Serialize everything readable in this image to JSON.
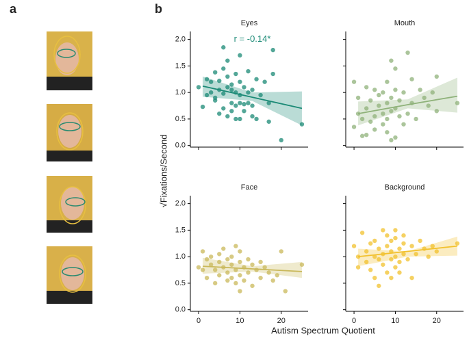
{
  "panel_labels": [
    "a",
    "b"
  ],
  "xlabel": "Autism Spectrum Quotient",
  "ylabel": "√Fixations/Second",
  "chart_data": [
    {
      "type": "scatter",
      "title": "Eyes",
      "annotation": "r = -0.14*",
      "color": "#1b8a76",
      "x": [
        0,
        1,
        2,
        2,
        3,
        3,
        4,
        4,
        4,
        5,
        5,
        5,
        6,
        6,
        6,
        6,
        7,
        7,
        7,
        7,
        8,
        8,
        8,
        8,
        9,
        9,
        9,
        9,
        10,
        10,
        10,
        10,
        10,
        11,
        11,
        11,
        12,
        12,
        12,
        13,
        13,
        13,
        14,
        14,
        15,
        16,
        17,
        17,
        18,
        18,
        20,
        25
      ],
      "y": [
        1.1,
        0.73,
        1.25,
        0.95,
        1.0,
        1.2,
        1.38,
        0.9,
        0.85,
        1.05,
        1.22,
        0.6,
        1.85,
        1.45,
        0.98,
        0.7,
        1.6,
        1.1,
        1.3,
        0.55,
        1.05,
        0.8,
        0.65,
        1.15,
        1.35,
        1.0,
        0.5,
        0.75,
        1.7,
        1.2,
        0.95,
        0.5,
        0.8,
        1.1,
        0.65,
        0.78,
        1.4,
        1.0,
        0.8,
        1.05,
        0.55,
        0.75,
        1.25,
        0.5,
        0.95,
        1.2,
        0.8,
        0.45,
        1.8,
        1.35,
        0.1,
        0.4
      ],
      "trend": {
        "x": [
          1,
          13,
          25
        ],
        "y": [
          1.12,
          0.91,
          0.7
        ],
        "lower": [
          0.92,
          0.84,
          0.38
        ],
        "upper": [
          1.3,
          1.0,
          1.02
        ]
      },
      "xlim": [
        -2,
        26.5
      ],
      "ylim": [
        -0.03,
        2.15
      ],
      "xticks": [
        0,
        10,
        20
      ],
      "yticks": [
        {
          "value": 0,
          "label": "0.0"
        },
        0.5,
        {
          "value": 1,
          "label": "1.0"
        },
        1.5,
        {
          "value": 2,
          "label": "2.0"
        }
      ]
    },
    {
      "type": "scatter",
      "title": "Mouth",
      "color": "#8fb27a",
      "x": [
        0,
        0,
        1,
        1,
        2,
        2,
        3,
        3,
        3,
        4,
        4,
        5,
        5,
        5,
        6,
        6,
        7,
        7,
        7,
        8,
        8,
        8,
        8,
        9,
        9,
        9,
        9,
        10,
        10,
        10,
        10,
        11,
        11,
        12,
        12,
        13,
        13,
        14,
        14,
        15,
        16,
        17,
        18,
        19,
        20,
        20,
        25
      ],
      "y": [
        0.35,
        1.2,
        0.6,
        0.9,
        0.18,
        0.5,
        0.7,
        1.1,
        0.2,
        0.45,
        0.85,
        1.05,
        0.55,
        0.3,
        0.75,
        0.95,
        1.0,
        0.4,
        0.6,
        1.2,
        0.25,
        0.5,
        0.8,
        1.6,
        0.9,
        0.1,
        0.65,
        1.45,
        0.7,
        0.15,
        1.05,
        0.55,
        0.85,
        1.0,
        0.4,
        1.75,
        0.6,
        1.25,
        0.8,
        0.5,
        1.05,
        0.9,
        0.75,
        1.0,
        1.3,
        0.65,
        0.8
      ],
      "trend": {
        "x": [
          1,
          13,
          25
        ],
        "y": [
          0.6,
          0.77,
          0.93
        ],
        "lower": [
          0.38,
          0.7,
          0.62
        ],
        "upper": [
          0.83,
          0.87,
          1.28
        ]
      },
      "xlim": [
        -2,
        26.5
      ],
      "ylim": [
        -0.03,
        2.15
      ],
      "xticks": [
        0,
        10,
        20
      ],
      "yticks": [
        {
          "value": 0,
          "label": "0.0"
        },
        0.5,
        {
          "value": 1,
          "label": "1.0"
        },
        1.5,
        {
          "value": 2,
          "label": "2.0"
        }
      ]
    },
    {
      "type": "scatter",
      "title": "Face",
      "color": "#c9b85a",
      "x": [
        0,
        1,
        1,
        2,
        2,
        3,
        3,
        4,
        4,
        5,
        5,
        5,
        6,
        6,
        7,
        7,
        7,
        8,
        8,
        8,
        9,
        9,
        9,
        10,
        10,
        10,
        10,
        11,
        11,
        12,
        12,
        13,
        13,
        14,
        15,
        15,
        16,
        17,
        18,
        19,
        20,
        21,
        25
      ],
      "y": [
        0.8,
        1.1,
        0.75,
        0.95,
        0.6,
        0.85,
        1.0,
        0.5,
        0.75,
        0.9,
        1.05,
        0.65,
        0.8,
        1.15,
        0.7,
        0.95,
        0.55,
        0.85,
        1.0,
        0.6,
        0.75,
        1.2,
        0.5,
        0.9,
        0.35,
        0.65,
        1.1,
        0.8,
        0.55,
        0.95,
        0.7,
        0.85,
        0.45,
        0.75,
        0.6,
        0.9,
        0.8,
        0.7,
        0.55,
        0.65,
        1.1,
        0.35,
        0.85
      ],
      "trend": {
        "x": [
          1,
          13,
          25
        ],
        "y": [
          0.82,
          0.77,
          0.72
        ],
        "lower": [
          0.68,
          0.72,
          0.6
        ],
        "upper": [
          0.98,
          0.82,
          0.9
        ]
      },
      "xlim": [
        -2,
        26.5
      ],
      "ylim": [
        -0.03,
        2.15
      ],
      "xticks": [
        0,
        10,
        20
      ],
      "yticks": [
        {
          "value": 0,
          "label": "0.0"
        },
        0.5,
        {
          "value": 1,
          "label": "1.0"
        },
        1.5,
        {
          "value": 2,
          "label": "2.0"
        }
      ]
    },
    {
      "type": "scatter",
      "title": "Background",
      "color": "#f2c12e",
      "x": [
        0,
        1,
        1,
        2,
        3,
        3,
        4,
        4,
        5,
        5,
        5,
        6,
        6,
        6,
        7,
        7,
        7,
        8,
        8,
        8,
        9,
        9,
        9,
        9,
        10,
        10,
        10,
        10,
        11,
        11,
        11,
        12,
        12,
        12,
        13,
        14,
        14,
        15,
        16,
        17,
        18,
        19,
        20,
        25
      ],
      "y": [
        1.2,
        1.0,
        0.8,
        1.45,
        1.1,
        0.9,
        1.25,
        0.75,
        1.0,
        0.6,
        1.3,
        0.45,
        1.15,
        0.95,
        1.5,
        0.85,
        1.05,
        1.2,
        0.7,
        1.4,
        1.1,
        0.6,
        1.3,
        0.95,
        1.35,
        1.0,
        0.8,
        1.5,
        1.15,
        0.9,
        0.7,
        1.25,
        1.05,
        1.4,
        0.95,
        1.2,
        0.6,
        1.05,
        1.3,
        1.15,
        1.0,
        1.2,
        1.1,
        1.25
      ],
      "trend": {
        "x": [
          1,
          13,
          25
        ],
        "y": [
          1.0,
          1.1,
          1.2
        ],
        "lower": [
          0.82,
          1.0,
          1.02
        ],
        "upper": [
          1.15,
          1.1,
          1.38
        ]
      },
      "xlim": [
        -2,
        26.5
      ],
      "ylim": [
        -0.03,
        2.15
      ],
      "xticks": [
        0,
        10,
        20
      ],
      "yticks": [
        {
          "value": 0,
          "label": "0.0"
        },
        0.5,
        {
          "value": 1,
          "label": "1.0"
        },
        1.5,
        {
          "value": 2,
          "label": "2.0"
        }
      ]
    }
  ]
}
